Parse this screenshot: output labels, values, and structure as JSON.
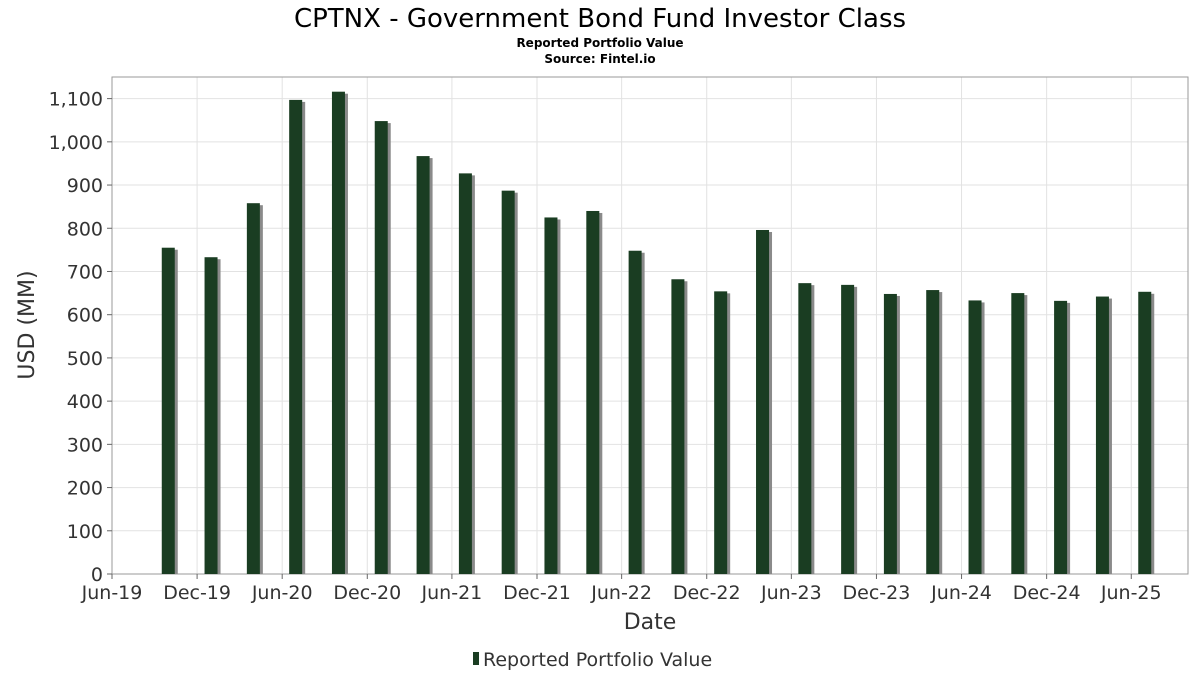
{
  "title": "CPTNX - Government Bond Fund Investor Class",
  "subtitle": "Reported Portfolio Value",
  "source": "Source: Fintel.io",
  "colors": {
    "bar": "#1a3d22",
    "bar_shadow": "#8a8a8a",
    "grid": "#e2e2e2",
    "frame": "#999999"
  },
  "chart_data": {
    "type": "bar",
    "title": "CPTNX - Government Bond Fund Investor Class",
    "xlabel": "Date",
    "ylabel": "USD (MM)",
    "ylim": [
      0,
      1150
    ],
    "yticks": [
      0,
      100,
      200,
      300,
      400,
      500,
      600,
      700,
      800,
      900,
      1000,
      1100
    ],
    "ytick_labels": [
      "0",
      "100",
      "200",
      "300",
      "400",
      "500",
      "600",
      "700",
      "800",
      "900",
      "1,000",
      "1,100"
    ],
    "xlim": [
      "2019-06-01",
      "2025-10-01"
    ],
    "xticks": [
      "2019-06-01",
      "2019-12-01",
      "2020-06-01",
      "2020-12-01",
      "2021-06-01",
      "2021-12-01",
      "2022-06-01",
      "2022-12-01",
      "2023-06-01",
      "2023-12-01",
      "2024-06-01",
      "2024-12-01",
      "2025-06-01"
    ],
    "xtick_labels": [
      "Jun-19",
      "Dec-19",
      "Jun-20",
      "Dec-20",
      "Jun-21",
      "Dec-21",
      "Jun-22",
      "Dec-22",
      "Jun-23",
      "Dec-23",
      "Jun-24",
      "Dec-24",
      "Jun-25"
    ],
    "grid": true,
    "legend_position": "bottom",
    "series": [
      {
        "name": "Reported Portfolio Value",
        "x": [
          "2019-09-30",
          "2019-12-31",
          "2020-03-31",
          "2020-06-30",
          "2020-09-30",
          "2020-12-31",
          "2021-03-31",
          "2021-06-30",
          "2021-09-30",
          "2021-12-31",
          "2022-03-31",
          "2022-06-30",
          "2022-09-30",
          "2022-12-31",
          "2023-03-31",
          "2023-06-30",
          "2023-09-30",
          "2023-12-31",
          "2024-03-31",
          "2024-06-30",
          "2024-09-30",
          "2024-12-31",
          "2025-03-31",
          "2025-06-30"
        ],
        "values": [
          755,
          733,
          858,
          1097,
          1116,
          1048,
          967,
          927,
          887,
          825,
          840,
          748,
          682,
          654,
          796,
          673,
          669,
          648,
          657,
          633,
          650,
          632,
          642,
          653
        ]
      }
    ]
  }
}
